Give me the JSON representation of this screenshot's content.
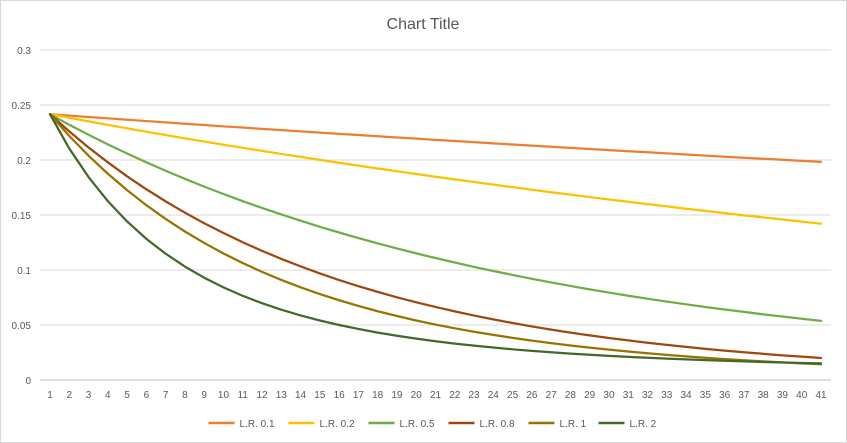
{
  "chart_data": {
    "type": "line",
    "title": "Chart Title",
    "xlabel": "",
    "ylabel": "",
    "x": [
      1,
      2,
      3,
      4,
      5,
      6,
      7,
      8,
      9,
      10,
      11,
      12,
      13,
      14,
      15,
      16,
      17,
      18,
      19,
      20,
      21,
      22,
      23,
      24,
      25,
      26,
      27,
      28,
      29,
      30,
      31,
      32,
      33,
      34,
      35,
      36,
      37,
      38,
      39,
      40,
      41
    ],
    "ylim": [
      0,
      0.3
    ],
    "yticks": [
      "0",
      "0.05",
      "0.1",
      "0.15",
      "0.2",
      "0.25",
      "0.3"
    ],
    "ytick_values": [
      0,
      0.05,
      0.1,
      0.15,
      0.2,
      0.25,
      0.3
    ],
    "grid": true,
    "legend_position": "bottom",
    "series": [
      {
        "name": "L.R. 0.1",
        "color": "#ED7D31",
        "values": [
          0.2416,
          0.2404,
          0.2391,
          0.2379,
          0.2366,
          0.2354,
          0.2342,
          0.233,
          0.2318,
          0.2306,
          0.2295,
          0.2283,
          0.2272,
          0.226,
          0.2249,
          0.2238,
          0.2227,
          0.2216,
          0.2205,
          0.2194,
          0.2183,
          0.2173,
          0.2162,
          0.2151,
          0.2141,
          0.2131,
          0.212,
          0.211,
          0.21,
          0.209,
          0.208,
          0.207,
          0.206,
          0.205,
          0.204,
          0.203,
          0.2021,
          0.2011,
          0.2002,
          0.1992,
          0.1983
        ]
      },
      {
        "name": "L.R. 0.2",
        "color": "#FFC000",
        "values": [
          0.2416,
          0.2384,
          0.2351,
          0.2319,
          0.2288,
          0.2257,
          0.2227,
          0.2197,
          0.2168,
          0.2139,
          0.2111,
          0.2083,
          0.2055,
          0.2028,
          0.2001,
          0.1975,
          0.1949,
          0.1923,
          0.1898,
          0.1873,
          0.1848,
          0.1824,
          0.18,
          0.1776,
          0.1753,
          0.173,
          0.1707,
          0.1685,
          0.1663,
          0.1641,
          0.162,
          0.1599,
          0.1578,
          0.1557,
          0.1537,
          0.1517,
          0.1497,
          0.1478,
          0.1459,
          0.144,
          0.1421
        ]
      },
      {
        "name": "L.R. 0.5",
        "color": "#70AD47",
        "values": [
          0.2416,
          0.232,
          0.223,
          0.2142,
          0.2059,
          0.1979,
          0.1902,
          0.1829,
          0.1758,
          0.1691,
          0.1626,
          0.1564,
          0.1505,
          0.1448,
          0.1393,
          0.1341,
          0.129,
          0.1242,
          0.1196,
          0.1151,
          0.1109,
          0.1068,
          0.1028,
          0.0991,
          0.0955,
          0.092,
          0.0887,
          0.0855,
          0.0824,
          0.0795,
          0.0766,
          0.0739,
          0.0713,
          0.0688,
          0.0664,
          0.0641,
          0.0619,
          0.0597,
          0.0577,
          0.0557,
          0.0538
        ]
      },
      {
        "name": "L.R. 0.8",
        "color": "#9E480E",
        "values": [
          0.2416,
          0.226,
          0.2114,
          0.1979,
          0.1852,
          0.1734,
          0.1624,
          0.1521,
          0.1425,
          0.1336,
          0.1252,
          0.1174,
          0.1101,
          0.1033,
          0.0969,
          0.0909,
          0.0853,
          0.0801,
          0.0752,
          0.0706,
          0.0664,
          0.0624,
          0.0586,
          0.0551,
          0.0518,
          0.0487,
          0.0458,
          0.0431,
          0.0406,
          0.0382,
          0.036,
          0.0339,
          0.0319,
          0.0301,
          0.0283,
          0.0267,
          0.0252,
          0.0238,
          0.0224,
          0.0212,
          0.02
        ]
      },
      {
        "name": "L.R. 1",
        "color": "#997300",
        "values": [
          0.2416,
          0.2218,
          0.2039,
          0.1875,
          0.1726,
          0.1589,
          0.1464,
          0.135,
          0.1246,
          0.115,
          0.1063,
          0.0983,
          0.091,
          0.0843,
          0.0781,
          0.0725,
          0.0673,
          0.0625,
          0.0582,
          0.0541,
          0.0504,
          0.047,
          0.0439,
          0.041,
          0.0383,
          0.0358,
          0.0335,
          0.0314,
          0.0294,
          0.0276,
          0.0259,
          0.0243,
          0.0228,
          0.0215,
          0.0202,
          0.019,
          0.0179,
          0.0169,
          0.016,
          0.0151,
          0.0143
        ]
      },
      {
        "name": "L.R. 2",
        "color": "#43682B",
        "values": [
          0.2416,
          0.2104,
          0.1845,
          0.1626,
          0.1441,
          0.1283,
          0.1148,
          0.1031,
          0.093,
          0.0842,
          0.0765,
          0.0698,
          0.0639,
          0.0587,
          0.0541,
          0.05,
          0.0464,
          0.0431,
          0.0402,
          0.0376,
          0.0352,
          0.0331,
          0.0312,
          0.0295,
          0.0279,
          0.0265,
          0.0252,
          0.024,
          0.0229,
          0.0219,
          0.021,
          0.0202,
          0.0194,
          0.0187,
          0.0181,
          0.0175,
          0.0169,
          0.0164,
          0.0159,
          0.0155,
          0.0151
        ]
      }
    ]
  }
}
